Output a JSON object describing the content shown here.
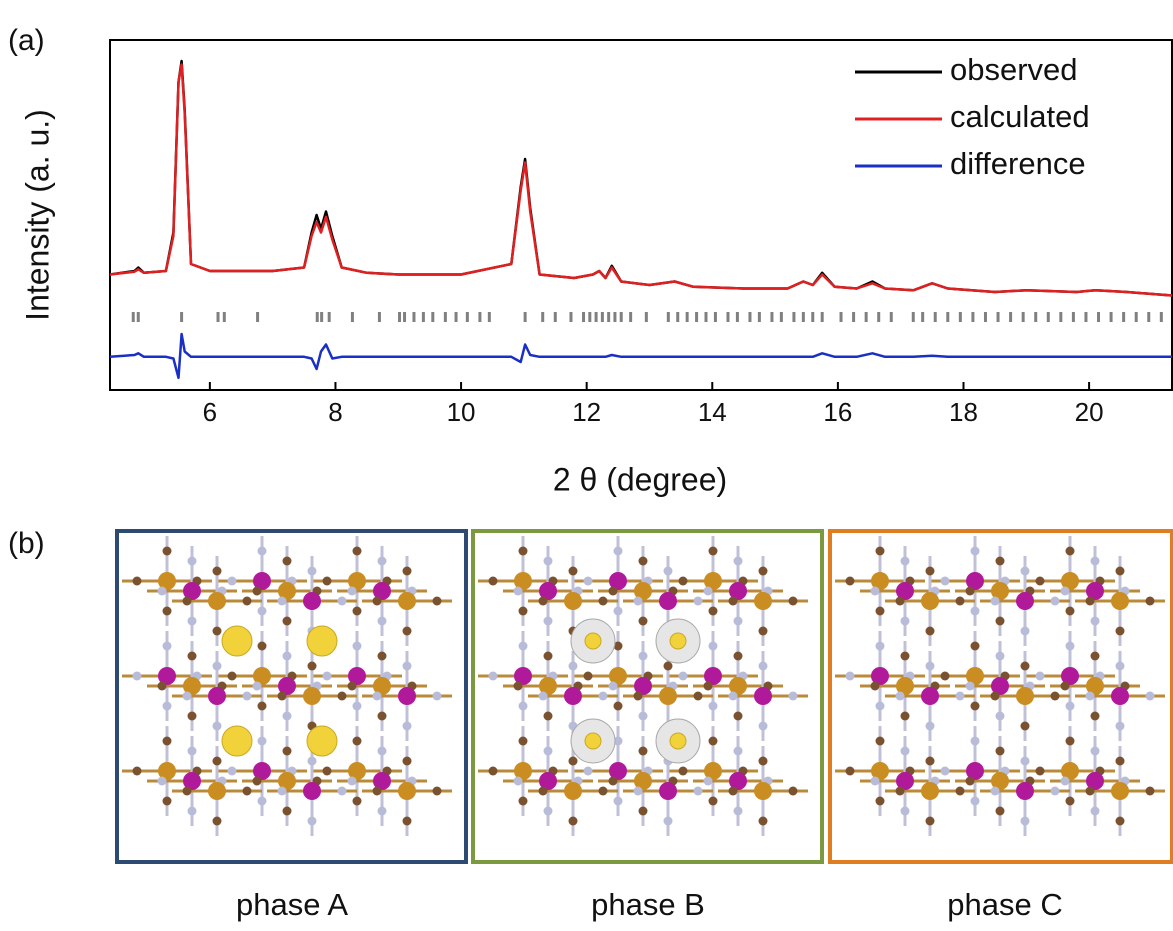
{
  "panel_labels": [
    "(a)",
    "(b)"
  ],
  "chart_data": {
    "type": "line",
    "y_label": "Intensity (a. u.)",
    "x_label": "2 θ (degree)",
    "xlim": [
      4.41,
      21.32
    ],
    "xticks": [
      6,
      8,
      10,
      12,
      14,
      16,
      18,
      20
    ],
    "ylim": [
      0,
      100
    ],
    "legend": "upper right",
    "x": [
      4.41,
      4.8,
      4.86,
      4.95,
      5.3,
      5.42,
      5.5,
      5.55,
      5.6,
      5.7,
      6.0,
      7.0,
      7.5,
      7.62,
      7.7,
      7.77,
      7.85,
      7.95,
      8.1,
      8.5,
      9.0,
      10.0,
      10.8,
      10.95,
      11.02,
      11.1,
      11.25,
      11.8,
      12.1,
      12.2,
      12.3,
      12.4,
      12.55,
      13.0,
      13.4,
      13.7,
      14.5,
      15.2,
      15.45,
      15.6,
      15.75,
      15.95,
      16.3,
      16.55,
      16.75,
      17.2,
      17.5,
      17.75,
      18.5,
      19.0,
      19.8,
      20.1,
      20.6,
      21.32
    ],
    "series": [
      {
        "name": "observed",
        "color": "#000000",
        "values": [
          33,
          34,
          35,
          33.5,
          34,
          45,
          88,
          94,
          80,
          36,
          34,
          34,
          35,
          45,
          50,
          46,
          51,
          44,
          35,
          33.5,
          33,
          33,
          36,
          58,
          66,
          52,
          33,
          32,
          33,
          34,
          32,
          35.5,
          31,
          30,
          31,
          29.5,
          29,
          29,
          31,
          30,
          33.5,
          29.5,
          29,
          31,
          29,
          28.5,
          30.5,
          29,
          28,
          28.5,
          28,
          28.5,
          28,
          27
        ]
      },
      {
        "name": "calculated",
        "color": "#e02020",
        "values": [
          33,
          33.8,
          34.5,
          33.5,
          34,
          44,
          88,
          93,
          79,
          36,
          34,
          34,
          35,
          44,
          48,
          45,
          49.5,
          43,
          35,
          33.5,
          33,
          33,
          36,
          57,
          65,
          51,
          33,
          32,
          33,
          34,
          32,
          35,
          31,
          30,
          31,
          29.5,
          29,
          29,
          31,
          30,
          33,
          29.5,
          29,
          30.5,
          29,
          28.5,
          30.5,
          29,
          28,
          28.5,
          28,
          28.5,
          28,
          27
        ]
      },
      {
        "name": "difference",
        "color": "#1a2fc4",
        "values": [
          9.5,
          10,
          10.5,
          9.5,
          9.5,
          9,
          3.5,
          16,
          11,
          9.5,
          9.5,
          9.5,
          9.5,
          9,
          6,
          11,
          13,
          9,
          9.5,
          9.5,
          9.5,
          9.5,
          9.5,
          8,
          13,
          10,
          9.5,
          9.5,
          9.5,
          9.5,
          9.5,
          10,
          9.5,
          9.5,
          9.5,
          9.5,
          9.5,
          9.5,
          9.5,
          9.5,
          10.5,
          9.5,
          9.5,
          10.5,
          9.5,
          9.5,
          9.8,
          9.5,
          9.5,
          9.5,
          9.5,
          9.5,
          9.5,
          9.5
        ]
      }
    ],
    "reflections": {
      "color": "#808080",
      "x": [
        4.78,
        4.86,
        5.55,
        6.13,
        6.23,
        6.76,
        7.71,
        7.78,
        7.9,
        8.27,
        8.7,
        9.02,
        9.1,
        9.25,
        9.4,
        9.55,
        9.75,
        9.92,
        10.1,
        10.3,
        10.45,
        11.02,
        11.3,
        11.5,
        11.75,
        11.95,
        12.05,
        12.15,
        12.25,
        12.35,
        12.45,
        12.55,
        12.7,
        12.95,
        13.3,
        13.45,
        13.6,
        13.75,
        13.9,
        14.05,
        14.25,
        14.4,
        14.6,
        14.75,
        14.95,
        15.1,
        15.3,
        15.45,
        15.6,
        15.75,
        16.05,
        16.25,
        16.45,
        16.65,
        16.85,
        17.2,
        17.35,
        17.55,
        17.75,
        17.95,
        18.15,
        18.35,
        18.55,
        18.75,
        18.95,
        19.15,
        19.35,
        19.55,
        19.75,
        19.95,
        20.15,
        20.35,
        20.55,
        20.75,
        20.95,
        21.15
      ]
    }
  },
  "structures": [
    {
      "label": "phase A",
      "color": "#2d4a72"
    },
    {
      "label": "phase B",
      "color": "#7b9a3f"
    },
    {
      "label": "phase C",
      "color": "#e07d20"
    }
  ]
}
